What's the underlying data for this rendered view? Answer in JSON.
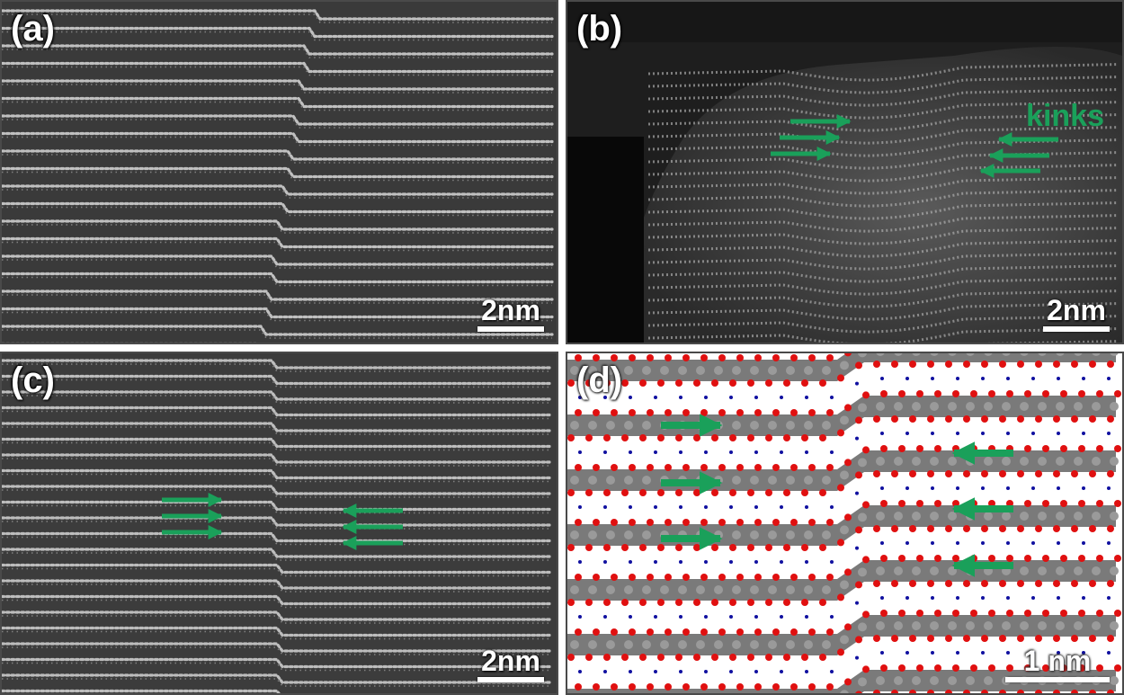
{
  "panels": {
    "a": {
      "label": "(a)",
      "scale_bar": "2nm"
    },
    "b": {
      "label": "(b)",
      "scale_bar": "2nm",
      "annotation": "kinks"
    },
    "c": {
      "label": "(c)",
      "scale_bar": "2nm"
    },
    "d": {
      "label": "(d)",
      "scale_bar": "1 nm"
    }
  },
  "colors": {
    "arrow": "#1aa05a",
    "oxygen_atom": "#e01010",
    "small_atom": "#1010a0",
    "layer_band": "#7a7a7a",
    "layer_atom": "#9a9a9a"
  }
}
